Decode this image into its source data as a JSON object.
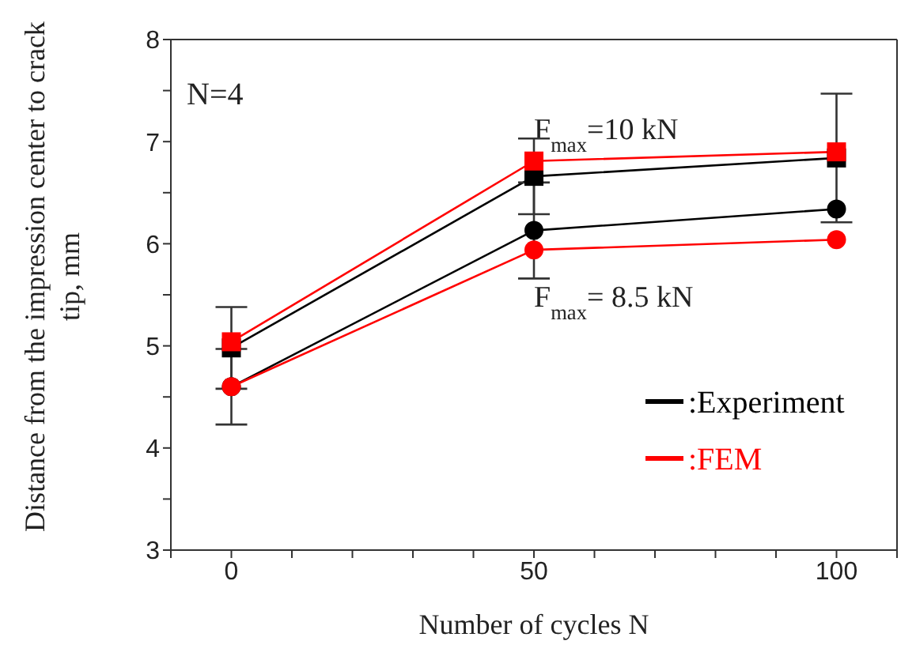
{
  "chart_data": {
    "type": "line",
    "xlabel": "Number of cycles  N",
    "ylabel": "Distance from the impression center to crack tip, mm",
    "x": [
      0,
      50,
      100
    ],
    "series": [
      {
        "name": ":Experiment",
        "color": "#000000",
        "marker": "square",
        "values": [
          4.98,
          6.66,
          6.84
        ],
        "errors": [
          0.4,
          0.37,
          0.63
        ]
      },
      {
        "name": ":FEM",
        "color": "#ff0000",
        "marker": "square",
        "values": [
          5.04,
          6.81,
          6.9
        ]
      },
      {
        "color": "#000000",
        "marker": "circle",
        "values": [
          4.6,
          6.13,
          6.34
        ],
        "errors": [
          0.37,
          0.47,
          null
        ]
      },
      {
        "color": "#ff0000",
        "marker": "circle",
        "values": [
          4.6,
          5.94,
          6.04
        ]
      }
    ],
    "xlim": [
      -10,
      110
    ],
    "xticks": [
      {
        "value": -10,
        "label": null
      },
      0,
      {
        "value": 10,
        "label": null
      },
      {
        "value": 20,
        "label": null
      },
      {
        "value": 30,
        "label": null
      },
      {
        "value": 40,
        "label": null
      },
      50,
      {
        "value": 60,
        "label": null
      },
      {
        "value": 70,
        "label": null
      },
      {
        "value": 80,
        "label": null
      },
      {
        "value": 90,
        "label": null
      },
      100,
      {
        "value": 110,
        "label": null
      }
    ],
    "ylim": [
      3,
      8
    ],
    "yticks": [
      3,
      {
        "value": 3.5,
        "label": null
      },
      4,
      {
        "value": 4.5,
        "label": null
      },
      5,
      {
        "value": 5.5,
        "label": null
      },
      6,
      {
        "value": 6.5,
        "label": null
      },
      7,
      {
        "value": 7.5,
        "label": null
      },
      8
    ],
    "annotations": [
      "N=4",
      "F$_{max}$=10 kN",
      "F$_{max}$= 8.5 kN"
    ],
    "legend": "bottom right"
  }
}
